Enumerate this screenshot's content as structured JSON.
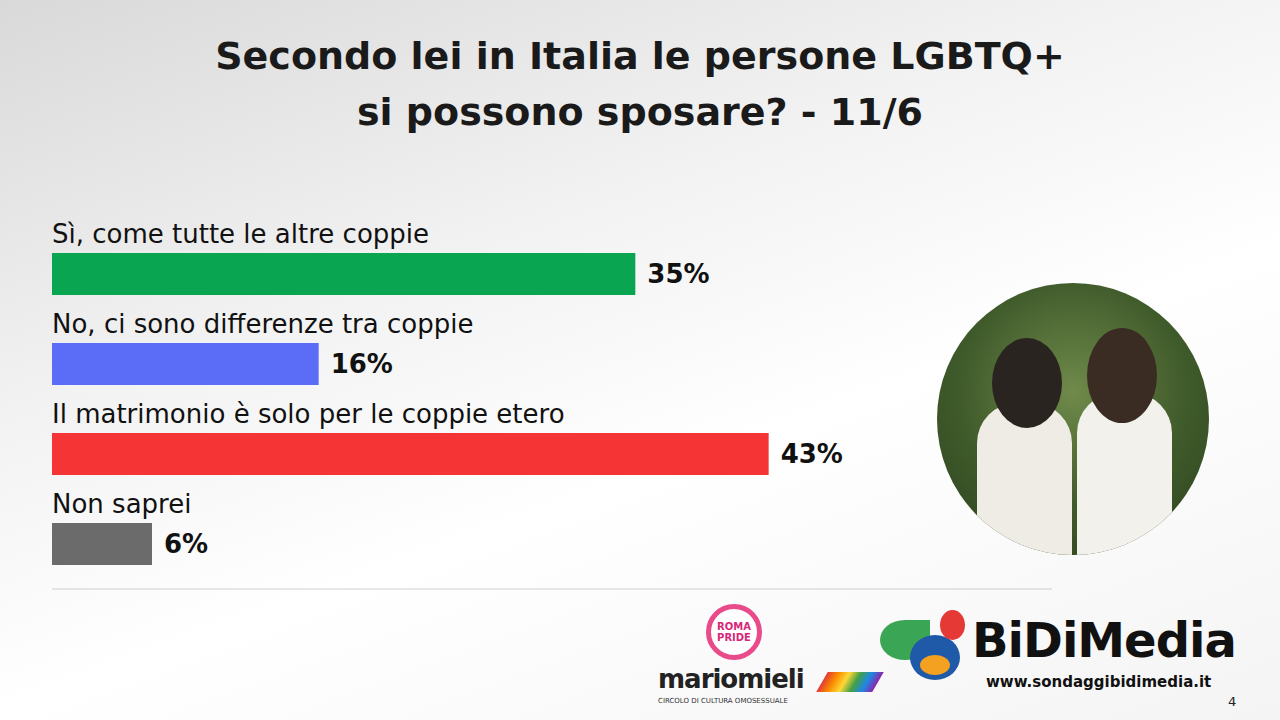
{
  "chart_data": {
    "type": "bar",
    "orientation": "horizontal",
    "title": "Secondo lei in Italia le persone LGBTQ+ si possono sposare? - 11/6",
    "categories": [
      "Sì, come tutte le altre coppie",
      "No, ci sono differenze tra coppie",
      "Il matrimonio è solo per le coppie etero",
      "Non saprei"
    ],
    "values": [
      35,
      16,
      43,
      6
    ],
    "value_labels": [
      "35%",
      "16%",
      "43%",
      "6%"
    ],
    "colors": [
      "#0aa550",
      "#5b6cf6",
      "#f53535",
      "#6b6b6b"
    ],
    "xlim": [
      0,
      60
    ],
    "grid": false,
    "data_labels": true,
    "tick_labels": false,
    "annotations": [
      "ROMA PRIDE",
      "mariomieli",
      "CIRCOLO DI CULTURA OMOSESSUALE",
      "BiDiMedia",
      "www.sondaggibidimedia.it",
      "4"
    ]
  }
}
